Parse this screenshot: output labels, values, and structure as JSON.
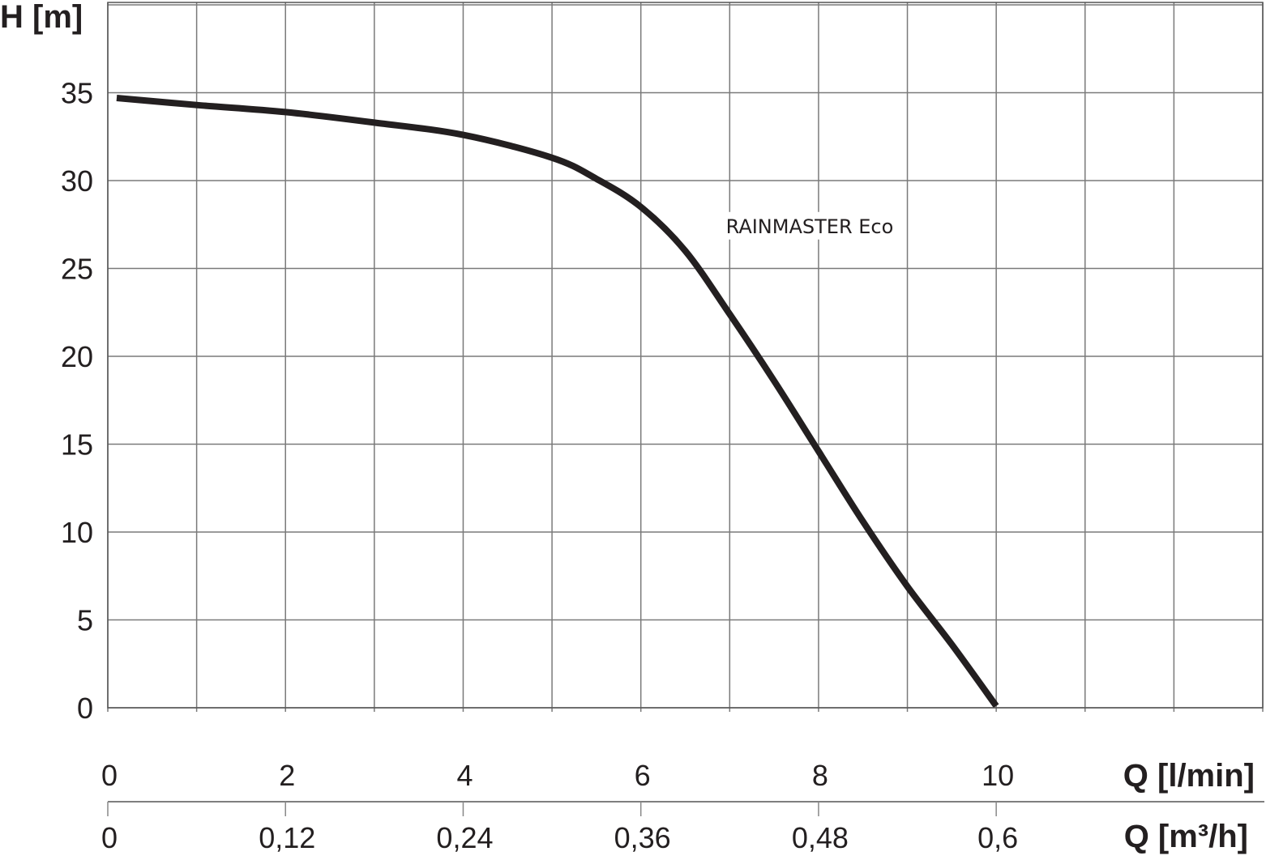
{
  "chart_data": {
    "type": "line",
    "title": "",
    "ylabel": "H [m]",
    "xlabel": "Q [l/min]",
    "xlabel_secondary": "Q [m³/h]",
    "xlim": [
      0,
      13
    ],
    "ylim": [
      0,
      40
    ],
    "grid": true,
    "x_grid_step": 1,
    "y_ticks": [
      0,
      5,
      10,
      15,
      20,
      25,
      30,
      35
    ],
    "y_tick_labels": [
      "0",
      "5",
      "10",
      "15",
      "20",
      "25",
      "30",
      "35"
    ],
    "x_ticks": [
      0,
      2,
      4,
      6,
      8,
      10
    ],
    "x_tick_labels": [
      "0",
      "2",
      "4",
      "6",
      "8",
      "10"
    ],
    "x_secondary_ticks": [
      0,
      2,
      4,
      6,
      8,
      10
    ],
    "x_secondary_tick_labels": [
      "0",
      "0,12",
      "0,24",
      "0,36",
      "0,48",
      "0,6"
    ],
    "series": [
      {
        "name": "RAINMASTER Eco",
        "color": "#231f20",
        "x": [
          0.1,
          1,
          2,
          3,
          4,
          5,
          5.5,
          6,
          6.5,
          7,
          7.5,
          8,
          8.5,
          9,
          9.5,
          10
        ],
        "y": [
          34.7,
          34.3,
          33.9,
          33.3,
          32.6,
          31.3,
          30.1,
          28.5,
          26.0,
          22.4,
          18.6,
          14.6,
          10.6,
          6.9,
          3.6,
          0.1
        ]
      }
    ],
    "annotations": [
      {
        "text": "RAINMASTER Eco",
        "x": 7.9,
        "y": 27.2
      }
    ]
  }
}
